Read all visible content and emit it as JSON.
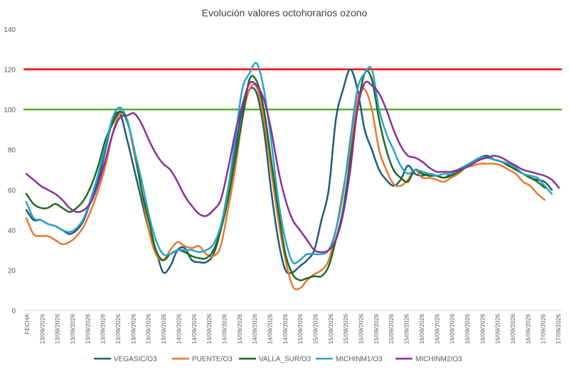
{
  "chart_data": {
    "type": "line",
    "title": "Evolución valores octohorarios ozono",
    "xlabel": "",
    "ylabel": "",
    "ylim": [
      0,
      140
    ],
    "yticks": [
      0,
      20,
      40,
      60,
      80,
      100,
      120,
      140
    ],
    "grid": false,
    "legend_position": "bottom",
    "first_category": "FECHA",
    "x_tick_labels": [
      "FECHA",
      "13/09/2026",
      "13/09/2026",
      "13/09/2026",
      "13/09/2026",
      "13/09/2026",
      "13/09/2026",
      "13/09/2026",
      "13/09/2026",
      "13/09/2026",
      "14/09/2026",
      "14/09/2026",
      "14/09/2026",
      "14/09/2026",
      "14/09/2026",
      "14/09/2026",
      "14/09/2026",
      "14/09/2026",
      "15/09/2026",
      "15/09/2026",
      "15/09/2026",
      "15/09/2026",
      "15/09/2026",
      "15/09/2026",
      "15/09/2026",
      "15/09/2026",
      "16/09/2026",
      "16/09/2026",
      "16/09/2026",
      "16/09/2026",
      "16/09/2026",
      "16/09/2026",
      "16/09/2026",
      "16/09/2026",
      "17/09/2026",
      "17/09/2026"
    ],
    "reference_lines": [
      {
        "value": 120,
        "color": "#ff0000"
      },
      {
        "value": 100,
        "color": "#5aab2f"
      }
    ],
    "series": [
      {
        "name": "VEGASIC/O3",
        "color": "#1f5c7a",
        "values": [
          50,
          45,
          45,
          43,
          42,
          40,
          38,
          40,
          45,
          55,
          65,
          80,
          95,
          98,
          85,
          70,
          55,
          40,
          30,
          19,
          22,
          30,
          31,
          25,
          24,
          24,
          28,
          40,
          60,
          80,
          100,
          110,
          108,
          90,
          60,
          35,
          20,
          19,
          22,
          25,
          30,
          45,
          60,
          95,
          110,
          120,
          110,
          90,
          80,
          70,
          65,
          62,
          65,
          72,
          68,
          67,
          68,
          67,
          66,
          68,
          70,
          72,
          74,
          76,
          77,
          75,
          74,
          72,
          70,
          68,
          66,
          65,
          64,
          60
        ]
      },
      {
        "name": "PUENTE/O3",
        "color": "#e8782f",
        "values": [
          46,
          38,
          37,
          37,
          35,
          33,
          34,
          37,
          42,
          50,
          60,
          72,
          88,
          98,
          95,
          78,
          60,
          40,
          28,
          25,
          30,
          34,
          32,
          31,
          32,
          28,
          27,
          32,
          50,
          70,
          95,
          110,
          111,
          95,
          70,
          45,
          25,
          12,
          11,
          15,
          18,
          20,
          25,
          40,
          60,
          80,
          105,
          110,
          100,
          80,
          70,
          63,
          62,
          65,
          70,
          66,
          66,
          65,
          64,
          66,
          68,
          71,
          72,
          73,
          73,
          73,
          72,
          70,
          68,
          64,
          62,
          58,
          55
        ]
      },
      {
        "name": "VALLA_SUR/O3",
        "color": "#1e6b1e",
        "values": [
          58,
          53,
          51,
          51,
          53,
          51,
          49,
          51,
          55,
          62,
          72,
          85,
          93,
          99,
          94,
          80,
          60,
          45,
          30,
          25,
          28,
          30,
          29,
          27,
          26,
          26,
          30,
          40,
          55,
          75,
          95,
          115,
          114,
          100,
          75,
          50,
          28,
          18,
          15,
          16,
          17,
          17,
          22,
          35,
          50,
          75,
          100,
          118,
          115,
          95,
          80,
          70,
          66,
          64,
          70,
          68,
          67,
          67,
          66,
          67,
          69,
          71,
          73,
          75,
          76,
          75,
          74,
          72,
          70,
          68,
          66,
          64,
          61
        ]
      },
      {
        "name": "MICHINM1/O3",
        "color": "#2aa3cc",
        "values": [
          54,
          46,
          45,
          43,
          42,
          40,
          39,
          41,
          46,
          56,
          68,
          82,
          96,
          101,
          95,
          80,
          65,
          48,
          35,
          28,
          28,
          30,
          30,
          30,
          29,
          30,
          33,
          42,
          60,
          85,
          110,
          118,
          123,
          110,
          85,
          55,
          35,
          24,
          25,
          28,
          28,
          28,
          30,
          40,
          58,
          85,
          110,
          118,
          120,
          100,
          88,
          80,
          72,
          68,
          70,
          69,
          68,
          67,
          68,
          68,
          70,
          72,
          74,
          76,
          76,
          75,
          74,
          73,
          71,
          68,
          67,
          66,
          62,
          58
        ]
      },
      {
        "name": "MICHINM2/O3",
        "color": "#8b2f9a",
        "values": [
          68,
          65,
          62,
          60,
          58,
          55,
          51,
          49,
          50,
          54,
          63,
          75,
          88,
          96,
          97,
          98,
          93,
          85,
          78,
          73,
          70,
          64,
          57,
          52,
          48,
          47,
          50,
          55,
          70,
          88,
          102,
          113,
          112,
          105,
          90,
          70,
          55,
          45,
          40,
          35,
          30,
          29,
          30,
          35,
          48,
          70,
          100,
          113,
          112,
          108,
          100,
          90,
          82,
          77,
          76,
          74,
          71,
          69,
          69,
          69,
          70,
          71,
          73,
          75,
          76,
          77,
          76,
          74,
          72,
          70,
          69,
          68,
          67,
          65,
          61
        ]
      }
    ]
  }
}
